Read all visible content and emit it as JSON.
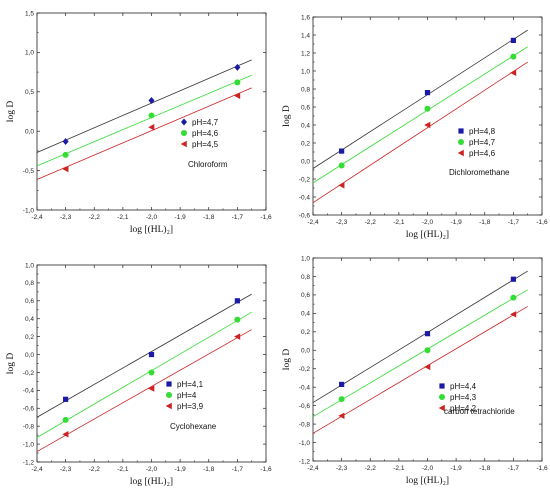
{
  "chart_data": [
    {
      "type": "scatter",
      "title": "",
      "xlabel": "log [(HL)₂]",
      "ylabel": "log D",
      "xlim": [
        -2.4,
        -1.6
      ],
      "ylim": [
        -1.0,
        1.5
      ],
      "xticks": [
        "-2,4",
        "-2,3",
        "-2,2",
        "-2,1",
        "-2,0",
        "-1,9",
        "-1,8",
        "-1,7",
        "-1,6"
      ],
      "yticks": [
        "-1,0",
        "-0,5",
        "0,0",
        "0,5",
        "1,0",
        "1,5"
      ],
      "annotation": "Chloroform",
      "legend_position": "right",
      "grid": false,
      "series": [
        {
          "name": "pH=4,7",
          "marker": "diamond",
          "color": "#1a1aa6",
          "line_color": "#333333",
          "x": [
            -2.3,
            -2.0,
            -1.7
          ],
          "y": [
            -0.13,
            0.39,
            0.81
          ]
        },
        {
          "name": "pH=4,6",
          "marker": "circle",
          "color": "#33dd33",
          "line_color": "#33dd33",
          "x": [
            -2.3,
            -2.0,
            -1.7
          ],
          "y": [
            -0.3,
            0.2,
            0.62
          ]
        },
        {
          "name": "pH=4,5",
          "marker": "triangle-left",
          "color": "#cc2222",
          "line_color": "#cc2222",
          "x": [
            -2.3,
            -2.0,
            -1.7
          ],
          "y": [
            -0.48,
            0.05,
            0.45
          ]
        }
      ]
    },
    {
      "type": "scatter",
      "title": "",
      "xlabel": "log [(HL)₂]",
      "ylabel": "log D",
      "xlim": [
        -2.4,
        -1.6
      ],
      "ylim": [
        -0.6,
        1.6
      ],
      "xticks": [
        "-2,4",
        "-2,3",
        "-2,2",
        "-2,1",
        "-2,0",
        "-1,9",
        "-1,8",
        "-1,7",
        "-1,6"
      ],
      "yticks": [
        "-0,6",
        "-0,4",
        "-0,2",
        "0,0",
        "0,2",
        "0,4",
        "0,6",
        "0,8",
        "1,0",
        "1,2",
        "1,4",
        "1,6"
      ],
      "annotation": "Dichloromethane",
      "legend_position": "right",
      "grid": false,
      "series": [
        {
          "name": "pH=4,8",
          "marker": "square",
          "color": "#1a1aa6",
          "line_color": "#333333",
          "x": [
            -2.3,
            -2.0,
            -1.7
          ],
          "y": [
            0.11,
            0.76,
            1.34
          ]
        },
        {
          "name": "pH=4,7",
          "marker": "circle",
          "color": "#33dd33",
          "line_color": "#33dd33",
          "x": [
            -2.3,
            -2.0,
            -1.7
          ],
          "y": [
            -0.05,
            0.58,
            1.16
          ]
        },
        {
          "name": "pH=4,6",
          "marker": "triangle-left",
          "color": "#cc2222",
          "line_color": "#cc2222",
          "x": [
            -2.3,
            -2.0,
            -1.7
          ],
          "y": [
            -0.27,
            0.4,
            0.98
          ]
        }
      ]
    },
    {
      "type": "scatter",
      "title": "",
      "xlabel": "log [(HL)₂]",
      "ylabel": "log D",
      "xlim": [
        -2.4,
        -1.6
      ],
      "ylim": [
        -1.2,
        1.0
      ],
      "xticks": [
        "-2,4",
        "-2,3",
        "-2,2",
        "-2,1",
        "-2,0",
        "-1,9",
        "-1,8",
        "-1,7",
        "-1,6"
      ],
      "yticks": [
        "-1,2",
        "-1,0",
        "-0,8",
        "-0,6",
        "-0,4",
        "-0,2",
        "0,0",
        "0,2",
        "0,4",
        "0,6",
        "0,8",
        "1,0"
      ],
      "annotation": "Cyclohexane",
      "legend_position": "right",
      "grid": false,
      "series": [
        {
          "name": "pH=4,1",
          "marker": "square",
          "color": "#1a1aa6",
          "line_color": "#333333",
          "x": [
            -2.3,
            -2.0,
            -1.7
          ],
          "y": [
            -0.5,
            0.0,
            0.6
          ]
        },
        {
          "name": "pH=4",
          "marker": "circle",
          "color": "#33dd33",
          "line_color": "#33dd33",
          "x": [
            -2.3,
            -2.0,
            -1.7
          ],
          "y": [
            -0.73,
            -0.2,
            0.39
          ]
        },
        {
          "name": "pH=3,9",
          "marker": "triangle-left",
          "color": "#cc2222",
          "line_color": "#cc2222",
          "x": [
            -2.3,
            -2.0,
            -1.7
          ],
          "y": [
            -0.89,
            -0.38,
            0.2
          ]
        }
      ]
    },
    {
      "type": "scatter",
      "title": "",
      "xlabel": "log [(HL)₂]",
      "ylabel": "log D",
      "xlim": [
        -2.4,
        -1.6
      ],
      "ylim": [
        -1.2,
        1.0
      ],
      "xticks": [
        "-2,4",
        "-2,3",
        "-2,2",
        "-2,1",
        "-2,0",
        "-1,9",
        "-1,8",
        "-1,7",
        "-1,6"
      ],
      "yticks": [
        "-1,2",
        "-1,0",
        "-0,8",
        "-0,6",
        "-0,4",
        "-0,2",
        "0,0",
        "0,2",
        "0,4",
        "0,6",
        "0,8",
        "1,0"
      ],
      "annotation": "carbon tetrachloride",
      "legend_position": "right",
      "grid": false,
      "series": [
        {
          "name": "pH=4,4",
          "marker": "square",
          "color": "#1a1aa6",
          "line_color": "#333333",
          "x": [
            -2.3,
            -2.0,
            -1.7
          ],
          "y": [
            -0.37,
            0.18,
            0.77
          ]
        },
        {
          "name": "pH=4,3",
          "marker": "circle",
          "color": "#33dd33",
          "line_color": "#33dd33",
          "x": [
            -2.3,
            -2.0,
            -1.7
          ],
          "y": [
            -0.53,
            0.0,
            0.57
          ]
        },
        {
          "name": "pH=4,2",
          "marker": "triangle-left",
          "color": "#cc2222",
          "line_color": "#cc2222",
          "x": [
            -2.3,
            -2.0,
            -1.7
          ],
          "y": [
            -0.71,
            -0.18,
            0.39
          ]
        }
      ]
    }
  ]
}
